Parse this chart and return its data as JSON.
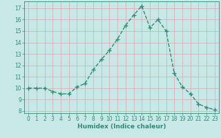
{
  "x": [
    0,
    1,
    2,
    3,
    4,
    5,
    6,
    7,
    8,
    9,
    10,
    11,
    12,
    13,
    14,
    15,
    16,
    17,
    18,
    19,
    20,
    21,
    22,
    23
  ],
  "y": [
    10.0,
    10.0,
    10.0,
    9.7,
    9.5,
    9.5,
    10.1,
    10.4,
    11.6,
    12.5,
    13.3,
    14.3,
    15.5,
    16.4,
    17.2,
    15.3,
    16.0,
    15.0,
    11.3,
    10.1,
    9.5,
    8.6,
    8.3,
    8.1
  ],
  "xlabel": "Humidex (Indice chaleur)",
  "xlim": [
    -0.5,
    23.5
  ],
  "ylim": [
    7.8,
    17.6
  ],
  "yticks": [
    8,
    9,
    10,
    11,
    12,
    13,
    14,
    15,
    16,
    17
  ],
  "xticks": [
    0,
    1,
    2,
    3,
    4,
    5,
    6,
    7,
    8,
    9,
    10,
    11,
    12,
    13,
    14,
    15,
    16,
    17,
    18,
    19,
    20,
    21,
    22,
    23
  ],
  "line_color": "#2e8b74",
  "bg_color": "#c8e8e8",
  "grid_color": "#d8a8a8",
  "linewidth": 1.0,
  "markersize": 4,
  "tick_fontsize": 5.5,
  "xlabel_fontsize": 6.5
}
